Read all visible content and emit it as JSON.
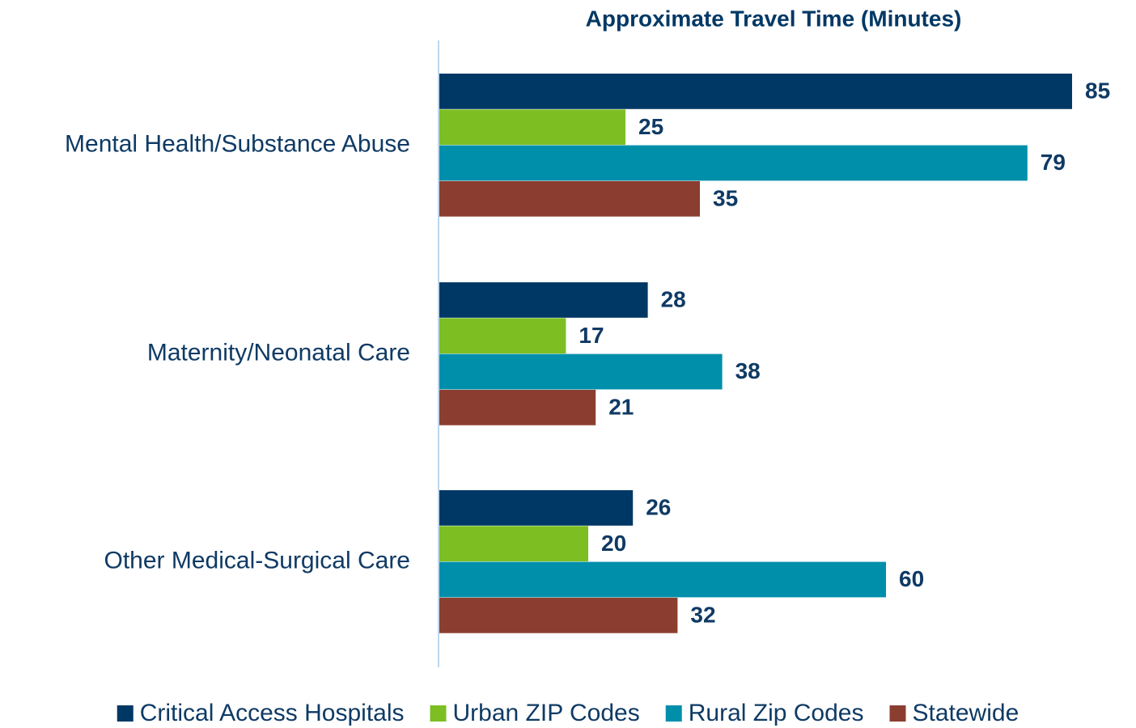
{
  "chart_data": {
    "type": "bar",
    "orientation": "horizontal",
    "title": "Approximate Travel Time (Minutes)",
    "categories": [
      "Mental Health/Substance Abuse",
      "Maternity/Neonatal Care",
      "Other Medical-Surgical Care"
    ],
    "series": [
      {
        "name": "Critical Access Hospitals",
        "color": "#003865",
        "values": [
          85,
          28,
          26
        ]
      },
      {
        "name": "Urban ZIP Codes",
        "color": "#7dbe23",
        "values": [
          25,
          17,
          20
        ]
      },
      {
        "name": "Rural Zip Codes",
        "color": "#008fab",
        "values": [
          79,
          38,
          60
        ]
      },
      {
        "name": "Statewide",
        "color": "#8b3e2f",
        "values": [
          35,
          21,
          32
        ]
      }
    ],
    "legend": "bottom"
  }
}
